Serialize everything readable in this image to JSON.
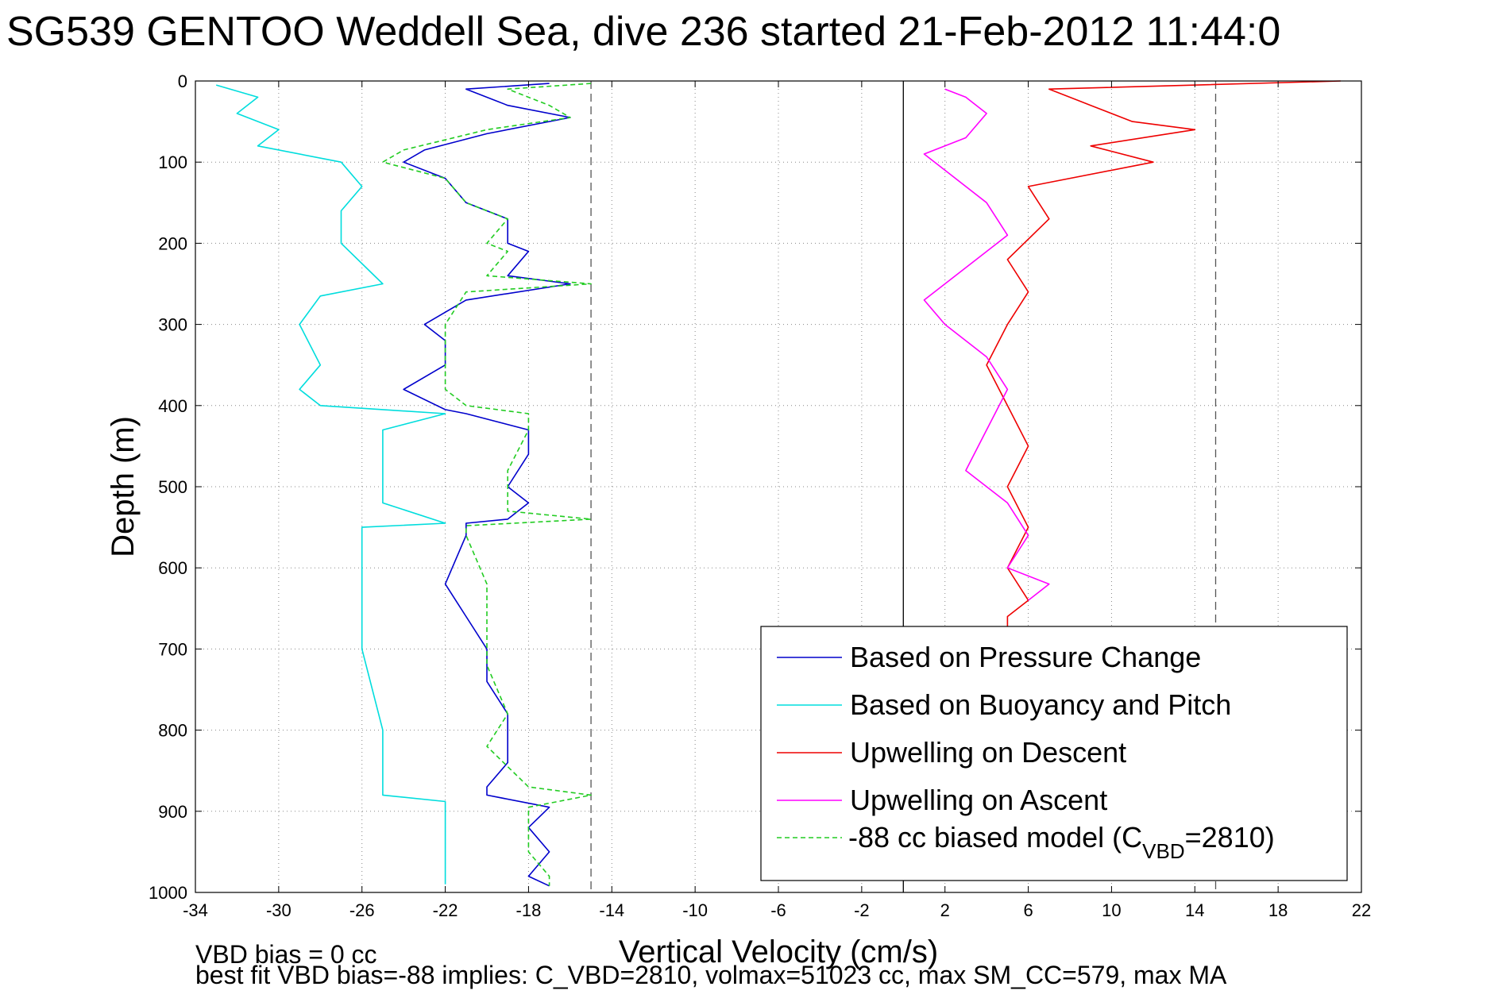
{
  "chart_data": {
    "type": "line",
    "title": "SG539 GENTOO Weddell Sea, dive 236 started 21-Feb-2012 11:44:0",
    "xlabel": "Vertical Velocity (cm/s)",
    "ylabel": "Depth (m)",
    "xlim": [
      -34,
      22
    ],
    "ylim": [
      0,
      1000
    ],
    "y_reversed": true,
    "grid": "dotted",
    "xticks": [
      -34,
      -30,
      -26,
      -22,
      -18,
      -14,
      -10,
      -6,
      -2,
      2,
      6,
      10,
      14,
      18,
      22
    ],
    "yticks": [
      0,
      100,
      200,
      300,
      400,
      500,
      600,
      700,
      800,
      900,
      1000
    ],
    "reference_lines": [
      {
        "x": -15,
        "style": "dashed"
      },
      {
        "x": 0,
        "style": "solid"
      },
      {
        "x": 15,
        "style": "dashed"
      }
    ],
    "legend_position": "lower-right",
    "series": [
      {
        "name": "Based on Pressure Change",
        "color": "#0000cc",
        "style": "solid",
        "x": [
          -17,
          -21,
          -19,
          -16,
          -20,
          -23,
          -24,
          -22,
          -21,
          -19,
          -19,
          -18,
          -19,
          -16,
          -21,
          -23,
          -22,
          -22,
          -24,
          -22,
          -21,
          -18,
          -18,
          -19,
          -18,
          -19,
          -21,
          -21,
          -22,
          -21,
          -20,
          -20,
          -19,
          -19,
          -19,
          -20,
          -20,
          -17,
          -18,
          -17,
          -18,
          -17
        ],
        "y": [
          3,
          10,
          30,
          45,
          65,
          85,
          100,
          120,
          150,
          170,
          200,
          210,
          240,
          250,
          270,
          300,
          320,
          350,
          380,
          405,
          410,
          430,
          460,
          500,
          520,
          540,
          545,
          560,
          620,
          660,
          700,
          740,
          780,
          800,
          840,
          870,
          880,
          895,
          920,
          950,
          980,
          992
        ]
      },
      {
        "name": "Based on Buoyancy and Pitch",
        "color": "#00dddd",
        "style": "solid",
        "x": [
          -33,
          -31,
          -32,
          -30,
          -31,
          -27,
          -26,
          -27,
          -27,
          -25,
          -28,
          -29,
          -28,
          -29,
          -28,
          -22,
          -25,
          -25,
          -25,
          -22,
          -26,
          -26,
          -26,
          -25,
          -25,
          -22,
          -22,
          -22,
          -22
        ],
        "y": [
          5,
          20,
          40,
          60,
          80,
          100,
          130,
          160,
          200,
          250,
          265,
          300,
          350,
          380,
          400,
          410,
          430,
          480,
          520,
          545,
          550,
          600,
          700,
          800,
          880,
          888,
          900,
          950,
          990
        ]
      },
      {
        "name": "Upwelling on Descent",
        "color": "#ee0000",
        "style": "solid",
        "x": [
          21,
          7,
          9,
          11,
          14,
          9,
          12,
          6,
          7,
          5,
          6,
          5,
          4,
          5,
          6,
          5,
          6,
          5,
          6,
          5,
          5
        ],
        "y": [
          0,
          10,
          30,
          50,
          60,
          80,
          100,
          130,
          170,
          220,
          260,
          300,
          350,
          400,
          450,
          500,
          550,
          600,
          640,
          660,
          680
        ]
      },
      {
        "name": "Upwelling on Ascent",
        "color": "#ff00ff",
        "style": "solid",
        "x": [
          2,
          3,
          4,
          3,
          1,
          2,
          4,
          5,
          3,
          1,
          2,
          4,
          5,
          4,
          3,
          5,
          6,
          5,
          7,
          6
        ],
        "y": [
          10,
          20,
          40,
          70,
          90,
          110,
          150,
          190,
          230,
          270,
          300,
          340,
          380,
          430,
          480,
          520,
          560,
          600,
          620,
          640
        ]
      },
      {
        "name": "-88 cc biased model (C_VBD=2810)",
        "color": "#22cc22",
        "style": "dashed",
        "x": [
          -15,
          -19,
          -17,
          -16,
          -20,
          -24,
          -25,
          -22,
          -21,
          -19,
          -20,
          -19,
          -20,
          -15,
          -21,
          -22,
          -22,
          -22,
          -21,
          -18,
          -18,
          -19,
          -19,
          -19,
          -15,
          -21,
          -21,
          -20,
          -20,
          -20,
          -19,
          -20,
          -18,
          -15,
          -18,
          -18,
          -18,
          -17,
          -17
        ],
        "y": [
          3,
          10,
          30,
          45,
          60,
          85,
          100,
          120,
          150,
          170,
          200,
          210,
          240,
          250,
          260,
          300,
          350,
          380,
          400,
          410,
          430,
          480,
          500,
          530,
          540,
          548,
          560,
          620,
          680,
          720,
          780,
          820,
          870,
          880,
          895,
          920,
          950,
          980,
          992
        ]
      }
    ],
    "legend": {
      "entries": [
        "Based on Pressure Change",
        "Based on Buoyancy and Pitch",
        "Upwelling on Descent",
        "Upwelling on Ascent"
      ],
      "last_prefix": "-88 cc biased model (C",
      "last_sub": "VBD",
      "last_suffix": "=2810)"
    }
  },
  "notes": {
    "line1": "VBD bias = 0 cc",
    "line2": "best fit VBD bias=-88 implies: C_VBD=2810, volmax=51023 cc, max SM_CC=579, max MA"
  }
}
